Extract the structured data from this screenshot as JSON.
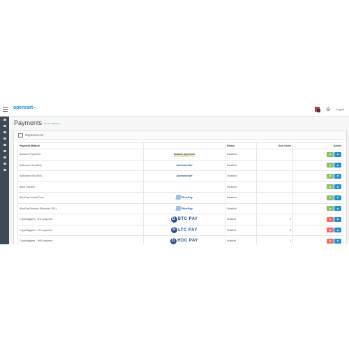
{
  "topbar": {
    "logo_text": "opencart",
    "logout_label": "Logout"
  },
  "sidebar": {
    "items": [
      "dashboard-icon",
      "catalog-icon",
      "extensions-icon",
      "design-icon",
      "sales-icon",
      "customers-icon",
      "marketing-icon",
      "system-icon",
      "reports-icon"
    ]
  },
  "page": {
    "title": "Payments",
    "breadcrumb": [
      "Home",
      "Payment"
    ]
  },
  "panel": {
    "heading": "Payment List",
    "columns": [
      "Payment Method",
      "",
      "Status",
      "Sort Order",
      "Action"
    ],
    "rows": [
      {
        "name": "Amazon Payments",
        "logo": "amazon payments",
        "status": "Disabled",
        "sort": "",
        "installed": false
      },
      {
        "name": "Authorize.Net (AIM)",
        "logo": "Authorize.Net",
        "status": "Disabled",
        "sort": "",
        "installed": false
      },
      {
        "name": "Authorize.Net (SIM)",
        "logo": "Authorize.Net",
        "status": "Disabled",
        "sort": "",
        "installed": false
      },
      {
        "name": "Bank Transfer",
        "logo": "",
        "status": "Disabled",
        "sort": "",
        "installed": false
      },
      {
        "name": "BluePay Hosted Form",
        "logo": "BluePay",
        "status": "Disabled",
        "sort": "",
        "installed": false
      },
      {
        "name": "BluePay Redirect (Requires SSL)",
        "logo": "BluePay",
        "status": "Disabled",
        "sort": "",
        "installed": false
      },
      {
        "name": "Cryptobiggers - BTC payment",
        "logo": "BTC PAY",
        "status": "Enabled",
        "sort": "2",
        "installed": true
      },
      {
        "name": "Cryptobiggers - LTC payment",
        "logo": "LTC PAY",
        "status": "Enabled",
        "sort": "3",
        "installed": true
      },
      {
        "name": "Cryptobiggers - WIE payment",
        "logo": "HDC PAY",
        "status": "Enabled",
        "sort": "1",
        "installed": true
      }
    ]
  },
  "colors": {
    "install": "#8fbb6c",
    "uninstall": "#f56b6b",
    "edit": "#1e91cf",
    "sidebar": "#3e4a54"
  }
}
